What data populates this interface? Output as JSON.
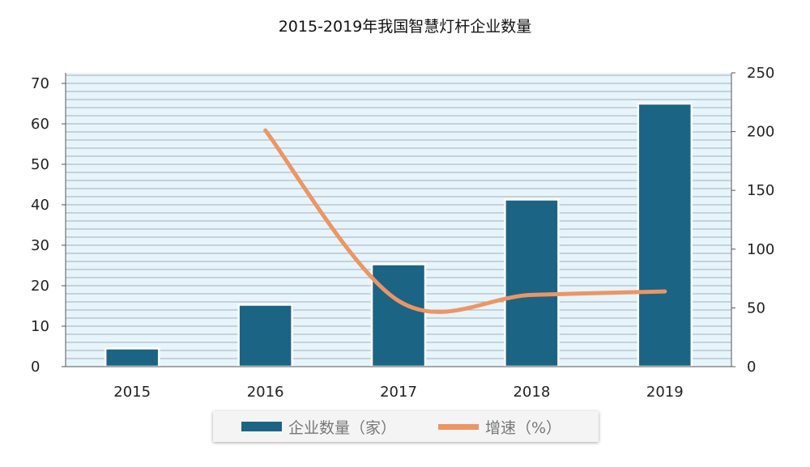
{
  "chart_data": {
    "type": "bar+line",
    "title": "2015-2019年我国智慧灯杆企业数量",
    "categories": [
      "2015",
      "2016",
      "2017",
      "2018",
      "2019"
    ],
    "series": [
      {
        "name": "企业数量（家）",
        "type": "bar",
        "axis": "left",
        "values": [
          4.5,
          15.3,
          25.3,
          41.3,
          65.0
        ],
        "color": "#1c6484"
      },
      {
        "name": "增速（%）",
        "type": "line",
        "axis": "right",
        "values": [
          null,
          201,
          56,
          61,
          64
        ],
        "color": "#ec9565"
      }
    ],
    "y_left": {
      "ylim": [
        0,
        70
      ],
      "ticks": [
        "0",
        "10",
        "20",
        "30",
        "40",
        "50",
        "60",
        "70"
      ]
    },
    "y_right": {
      "ylim": [
        0,
        250
      ],
      "ticks": [
        "0",
        "50",
        "100",
        "150",
        "200",
        "250"
      ]
    },
    "grid": true,
    "plot_background": "#e6f4fb",
    "legend_position": "bottom"
  }
}
